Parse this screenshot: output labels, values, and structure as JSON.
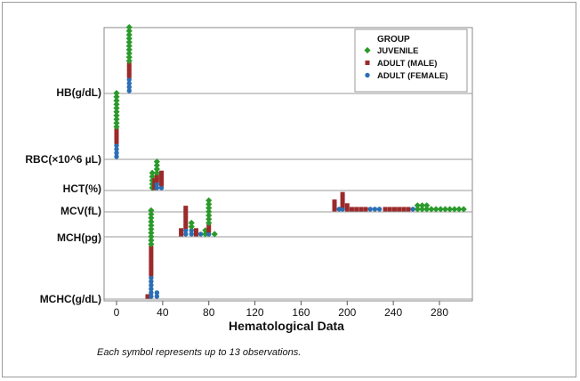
{
  "chart_data": {
    "type": "dotplot",
    "xlabel": "Hematological Data",
    "xlim": [
      -10,
      305
    ],
    "xticks": [
      0,
      40,
      80,
      120,
      160,
      200,
      240,
      280
    ],
    "xtick_labels": [
      "0",
      "40",
      "80",
      "120",
      "160",
      "200",
      "240",
      "280"
    ],
    "note": "Each symbol represents up to 13 observations.",
    "legend": {
      "title": "GROUP",
      "position": "top-right",
      "entries": [
        {
          "name": "JUVENILE",
          "color": "#2a9a2a",
          "marker": "diamond"
        },
        {
          "name": "ADULT (MALE)",
          "color": "#9b2a2a",
          "marker": "square"
        },
        {
          "name": "ADULT (FEMALE)",
          "color": "#2a6fb5",
          "marker": "circle"
        }
      ]
    },
    "panels": [
      {
        "label": "HB(g/dL)",
        "stacks": [
          {
            "x": 11,
            "groups": [
              [
                "female",
                4
              ],
              [
                "male",
                4
              ],
              [
                "juvenile",
                10
              ]
            ]
          }
        ]
      },
      {
        "label": "RBC(×10^6 µL)",
        "stacks": [
          {
            "x": 0,
            "groups": [
              [
                "female",
                4
              ],
              [
                "male",
                4
              ],
              [
                "juvenile",
                10
              ]
            ]
          }
        ]
      },
      {
        "label": "HCT(%)",
        "stacks": [
          {
            "x": 31,
            "groups": [
              [
                "juvenile",
                5
              ]
            ]
          },
          {
            "x": 33,
            "groups": [
              [
                "male",
                3
              ]
            ]
          },
          {
            "x": 35,
            "groups": [
              [
                "female",
                2
              ],
              [
                "male",
                2
              ],
              [
                "juvenile",
                4
              ]
            ]
          },
          {
            "x": 39,
            "groups": [
              [
                "female",
                1
              ],
              [
                "male",
                4
              ]
            ]
          }
        ]
      },
      {
        "label": "MCV(fL)",
        "stacks": [
          {
            "x": 189,
            "groups": [
              [
                "male",
                3
              ]
            ]
          },
          {
            "x": 193,
            "groups": [
              [
                "female",
                1
              ]
            ]
          },
          {
            "x": 196,
            "groups": [
              [
                "female",
                1
              ],
              [
                "male",
                4
              ]
            ]
          },
          {
            "x": 200,
            "groups": [
              [
                "male",
                2
              ]
            ]
          },
          {
            "x": 204,
            "groups": [
              [
                "male",
                1
              ]
            ]
          },
          {
            "x": 208,
            "groups": [
              [
                "male",
                1
              ]
            ]
          },
          {
            "x": 212,
            "groups": [
              [
                "male",
                1
              ]
            ]
          },
          {
            "x": 216,
            "groups": [
              [
                "male",
                1
              ]
            ]
          },
          {
            "x": 220,
            "groups": [
              [
                "female",
                1
              ]
            ]
          },
          {
            "x": 224,
            "groups": [
              [
                "female",
                1
              ]
            ]
          },
          {
            "x": 228,
            "groups": [
              [
                "female",
                1
              ]
            ]
          },
          {
            "x": 233,
            "groups": [
              [
                "male",
                1
              ]
            ]
          },
          {
            "x": 237,
            "groups": [
              [
                "male",
                1
              ]
            ]
          },
          {
            "x": 241,
            "groups": [
              [
                "male",
                1
              ]
            ]
          },
          {
            "x": 245,
            "groups": [
              [
                "male",
                1
              ]
            ]
          },
          {
            "x": 249,
            "groups": [
              [
                "male",
                1
              ]
            ]
          },
          {
            "x": 253,
            "groups": [
              [
                "male",
                1
              ]
            ]
          },
          {
            "x": 257,
            "groups": [
              [
                "female",
                1
              ]
            ]
          },
          {
            "x": 261,
            "groups": [
              [
                "juvenile",
                2
              ]
            ]
          },
          {
            "x": 265,
            "groups": [
              [
                "juvenile",
                2
              ]
            ]
          },
          {
            "x": 269,
            "groups": [
              [
                "juvenile",
                2
              ]
            ]
          },
          {
            "x": 273,
            "groups": [
              [
                "juvenile",
                1
              ]
            ]
          },
          {
            "x": 277,
            "groups": [
              [
                "juvenile",
                1
              ]
            ]
          },
          {
            "x": 281,
            "groups": [
              [
                "juvenile",
                1
              ]
            ]
          },
          {
            "x": 285,
            "groups": [
              [
                "juvenile",
                1
              ]
            ]
          },
          {
            "x": 289,
            "groups": [
              [
                "juvenile",
                1
              ]
            ]
          },
          {
            "x": 293,
            "groups": [
              [
                "juvenile",
                1
              ]
            ]
          },
          {
            "x": 297,
            "groups": [
              [
                "juvenile",
                1
              ]
            ]
          },
          {
            "x": 301,
            "groups": [
              [
                "juvenile",
                1
              ]
            ]
          }
        ]
      },
      {
        "label": "MCH(pg)",
        "stacks": [
          {
            "x": 56,
            "groups": [
              [
                "male",
                2
              ]
            ]
          },
          {
            "x": 60,
            "groups": [
              [
                "female",
                2
              ],
              [
                "male",
                6
              ]
            ]
          },
          {
            "x": 65,
            "groups": [
              [
                "female",
                2
              ],
              [
                "juvenile",
                2
              ]
            ]
          },
          {
            "x": 69,
            "groups": [
              [
                "male",
                2
              ]
            ]
          },
          {
            "x": 73,
            "groups": [
              [
                "female",
                1
              ]
            ]
          },
          {
            "x": 77,
            "groups": [
              [
                "juvenile",
                2
              ]
            ]
          },
          {
            "x": 80,
            "groups": [
              [
                "female",
                1
              ],
              [
                "male",
                2
              ],
              [
                "juvenile",
                7
              ]
            ]
          },
          {
            "x": 85,
            "groups": [
              [
                "juvenile",
                1
              ]
            ]
          }
        ]
      },
      {
        "label": "MCHC(g/dL)",
        "stacks": [
          {
            "x": 27,
            "groups": [
              [
                "male",
                1
              ]
            ]
          },
          {
            "x": 30,
            "groups": [
              [
                "female",
                6
              ],
              [
                "male",
                8
              ],
              [
                "juvenile",
                10
              ]
            ]
          },
          {
            "x": 35,
            "groups": [
              [
                "female",
                2
              ]
            ]
          }
        ]
      }
    ]
  }
}
